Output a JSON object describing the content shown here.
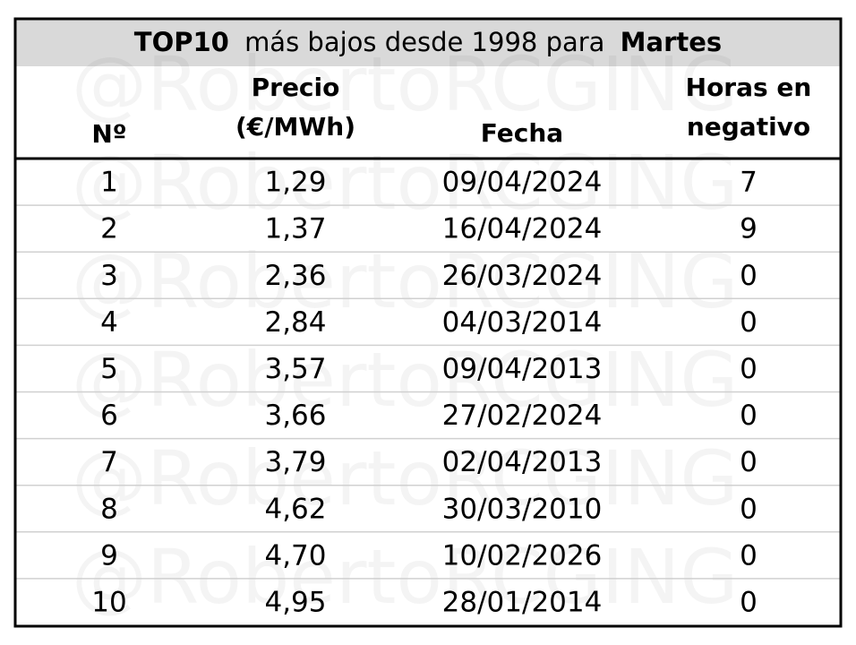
{
  "title": [
    "TOP10",
    "más bajos desde 1998 para",
    "Martes"
  ],
  "watermark": "@RobertoRCGING",
  "table": {
    "headers": [
      [
        "Nº"
      ],
      [
        "Precio",
        "(€/MWh)"
      ],
      [
        "Fecha"
      ],
      [
        "Horas en",
        "negativo"
      ]
    ],
    "rows": [
      [
        1,
        "1,29",
        "09/04/2024",
        7
      ],
      [
        2,
        "1,37",
        "16/04/2024",
        9
      ],
      [
        3,
        "2,36",
        "26/03/2024",
        0
      ],
      [
        4,
        "2,84",
        "04/03/2014",
        0
      ],
      [
        5,
        "3,57",
        "09/04/2013",
        0
      ],
      [
        6,
        "3,66",
        "27/02/2024",
        0
      ],
      [
        7,
        "3,79",
        "02/04/2013",
        0
      ],
      [
        8,
        "4,62",
        "30/03/2010",
        0
      ],
      [
        9,
        "4,70",
        "10/02/2026",
        0
      ],
      [
        10,
        "4,95",
        "28/01/2014",
        0
      ]
    ]
  }
}
